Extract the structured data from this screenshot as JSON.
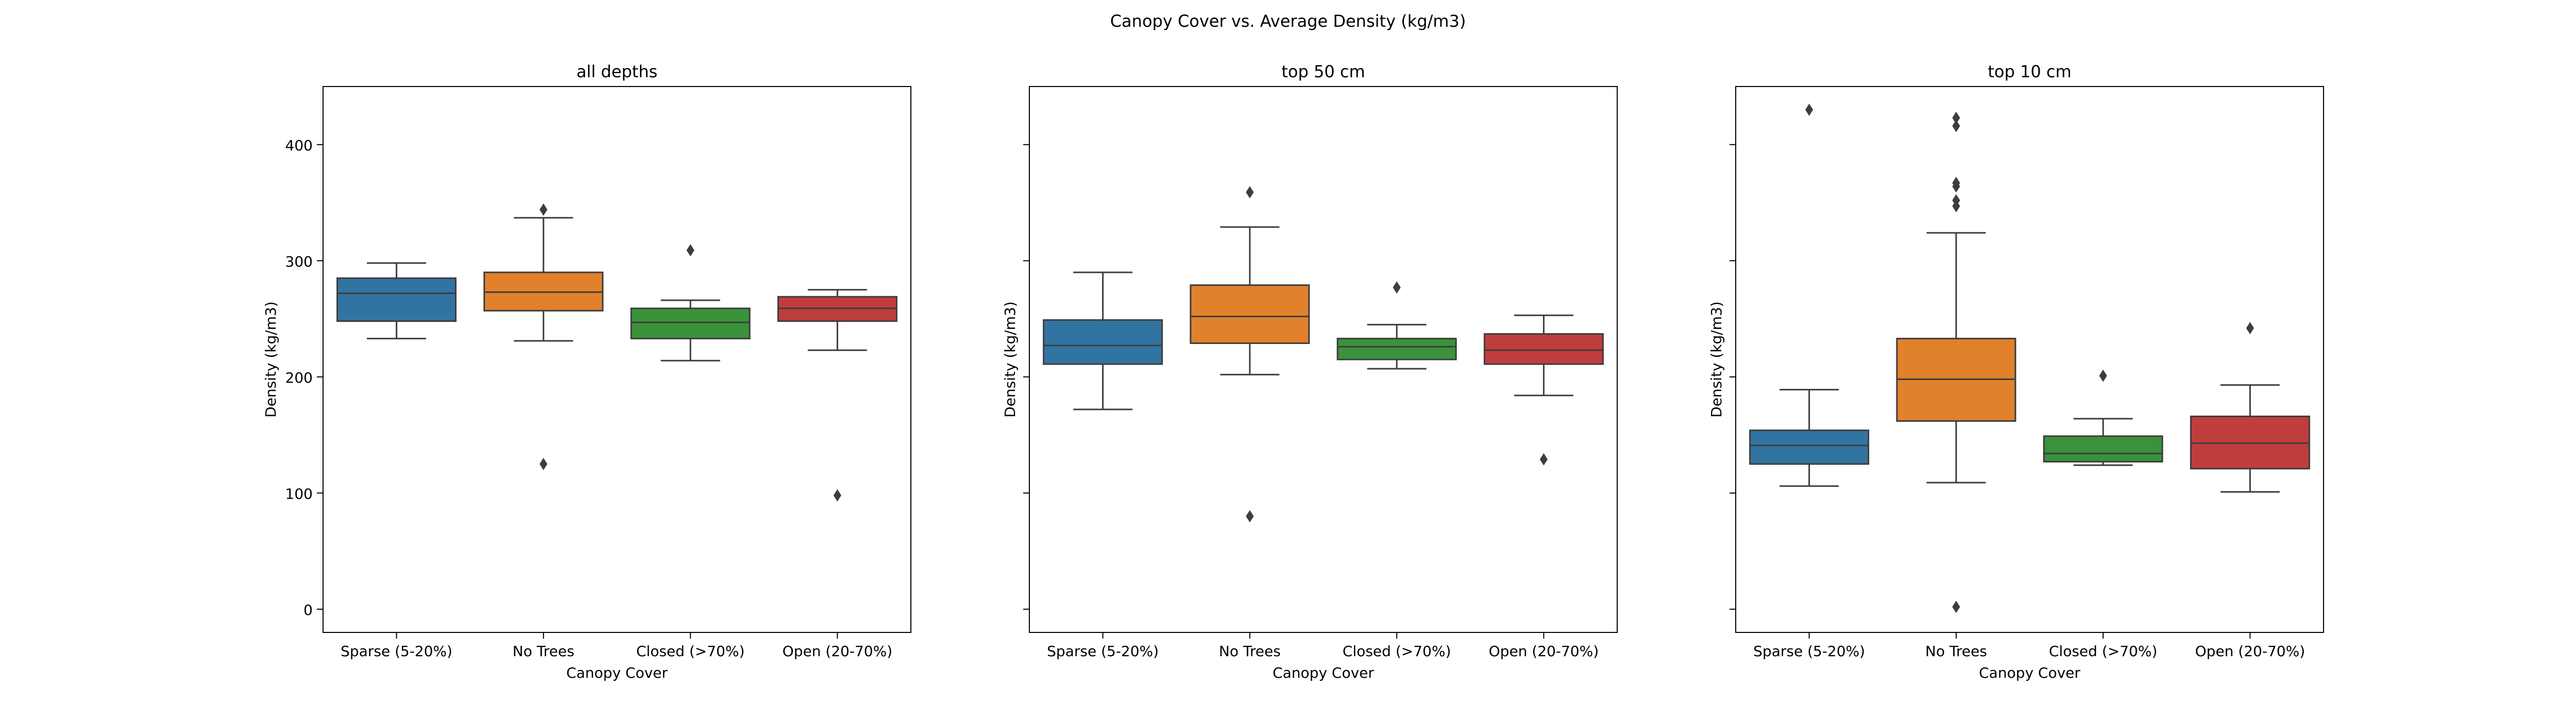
{
  "figure": {
    "title": "Canopy Cover vs. Average Density (kg/m3)"
  },
  "chart_data": [
    {
      "type": "box",
      "title": "all depths",
      "xlabel": "Canopy Cover",
      "ylabel": "Density (kg/m3)",
      "ylim": [
        -20,
        450
      ],
      "yticks": [
        0,
        100,
        200,
        300,
        400
      ],
      "show_tick_labels": true,
      "categories": [
        "Sparse (5-20%)",
        "No Trees",
        "Closed (>70%)",
        "Open (20-70%)"
      ],
      "boxes": [
        {
          "whisker_low": 233,
          "q1": 248,
          "median": 272,
          "q3": 285,
          "whisker_high": 298,
          "outliers": []
        },
        {
          "whisker_low": 231,
          "q1": 257,
          "median": 273,
          "q3": 290,
          "whisker_high": 337,
          "outliers": [
            344,
            125
          ]
        },
        {
          "whisker_low": 214,
          "q1": 233,
          "median": 247,
          "q3": 259,
          "whisker_high": 266,
          "outliers": [
            309
          ]
        },
        {
          "whisker_low": 223,
          "q1": 248,
          "median": 259,
          "q3": 269,
          "whisker_high": 275,
          "outliers": [
            98
          ]
        }
      ]
    },
    {
      "type": "box",
      "title": "top 50 cm",
      "xlabel": "Canopy Cover",
      "ylabel": "Density (kg/m3)",
      "ylim": [
        -20,
        450
      ],
      "yticks": [
        0,
        100,
        200,
        300,
        400
      ],
      "show_tick_labels": false,
      "categories": [
        "Sparse (5-20%)",
        "No Trees",
        "Closed (>70%)",
        "Open (20-70%)"
      ],
      "boxes": [
        {
          "whisker_low": 172,
          "q1": 211,
          "median": 227,
          "q3": 249,
          "whisker_high": 290,
          "outliers": []
        },
        {
          "whisker_low": 202,
          "q1": 229,
          "median": 252,
          "q3": 279,
          "whisker_high": 329,
          "outliers": [
            359,
            80
          ]
        },
        {
          "whisker_low": 207,
          "q1": 215,
          "median": 226,
          "q3": 233,
          "whisker_high": 245,
          "outliers": [
            277
          ]
        },
        {
          "whisker_low": 184,
          "q1": 211,
          "median": 223,
          "q3": 237,
          "whisker_high": 253,
          "outliers": [
            129
          ]
        }
      ]
    },
    {
      "type": "box",
      "title": "top 10 cm",
      "xlabel": "Canopy Cover",
      "ylabel": "Density (kg/m3)",
      "ylim": [
        -20,
        450
      ],
      "yticks": [
        0,
        100,
        200,
        300,
        400
      ],
      "show_tick_labels": false,
      "categories": [
        "Sparse (5-20%)",
        "No Trees",
        "Closed (>70%)",
        "Open (20-70%)"
      ],
      "boxes": [
        {
          "whisker_low": 106,
          "q1": 125,
          "median": 141,
          "q3": 154,
          "whisker_high": 189,
          "outliers": [
            430
          ]
        },
        {
          "whisker_low": 109,
          "q1": 162,
          "median": 198,
          "q3": 233,
          "whisker_high": 324,
          "outliers": [
            423,
            416,
            367,
            364,
            352,
            347,
            2
          ]
        },
        {
          "whisker_low": 124,
          "q1": 127,
          "median": 134,
          "q3": 149,
          "whisker_high": 164,
          "outliers": [
            201
          ]
        },
        {
          "whisker_low": 101,
          "q1": 121,
          "median": 143,
          "q3": 166,
          "whisker_high": 193,
          "outliers": [
            242
          ]
        }
      ]
    }
  ],
  "colors": {
    "boxes": [
      "#3274a1",
      "#e1812c",
      "#3a923a",
      "#c03d3e"
    ],
    "lines": "#3d3d3d",
    "frame": "#000000"
  }
}
